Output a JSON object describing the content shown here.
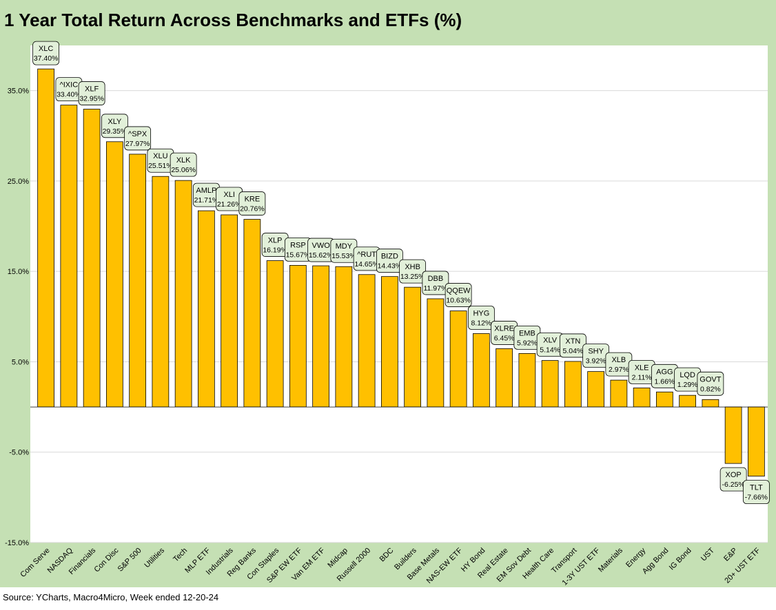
{
  "title": "1 Year Total Return Across Benchmarks and ETFs (%)",
  "source": "Source: YCharts, Macro4Micro, Week ended 12-20-24",
  "colors": {
    "bar": "#ffc000",
    "bar_edge": "#000000",
    "frame": "#c5e0b4",
    "label_fill": "#e2f0d9",
    "plot": "#ffffff"
  },
  "chart_data": {
    "type": "bar",
    "title": "1 Year Total Return Across Benchmarks and ETFs (%)",
    "xlabel": "",
    "ylabel": "",
    "ylim": [
      -15,
      40
    ],
    "yticks": [
      -15,
      -5,
      5,
      15,
      25,
      35
    ],
    "ytick_labels": [
      "-15.0%",
      "-5.0%",
      "5.0%",
      "15.0%",
      "25.0%",
      "35.0%"
    ],
    "grid": true,
    "legend": "none",
    "categories": [
      "Com Serve",
      "NASDAQ",
      "Financials",
      "Con Disc",
      "S&P 500",
      "Utilities",
      "Tech",
      "MLP ETF",
      "Industrials",
      "Reg Banks",
      "Con Staples",
      "S&P EW ETF",
      "Van EM ETF",
      "Midcap",
      "Russell 2000",
      "BDC",
      "Builders",
      "Base Metals",
      "NAS-EW ETF",
      "HY Bond",
      "Real Estate",
      "EM Sov Debt",
      "Health Care",
      "Transport",
      "1-3Y UST ETF",
      "Materials",
      "Energy",
      "Agg Bond",
      "IG Bond",
      "UST",
      "E&P",
      "20+ UST ETF"
    ],
    "values": [
      37.4,
      33.4,
      32.95,
      29.35,
      27.97,
      25.51,
      25.06,
      21.71,
      21.26,
      20.76,
      16.19,
      15.67,
      15.62,
      15.53,
      14.65,
      14.43,
      13.25,
      11.97,
      10.63,
      8.12,
      6.45,
      5.92,
      5.14,
      5.04,
      3.92,
      2.97,
      2.11,
      1.66,
      1.29,
      0.82,
      -6.25,
      -7.66
    ],
    "tickers": [
      "XLC",
      "^IXIC",
      "XLF",
      "XLY",
      "^SPX",
      "XLU",
      "XLK",
      "AMLP",
      "XLI",
      "KRE",
      "XLP",
      "RSP",
      "VWO",
      "MDY",
      "^RUT",
      "BIZD",
      "XHB",
      "DBB",
      "QQEW",
      "HYG",
      "XLRE",
      "EMB",
      "XLV",
      "XTN",
      "SHY",
      "XLB",
      "XLE",
      "AGG",
      "LQD",
      "GOVT",
      "XOP",
      "TLT"
    ],
    "value_labels": [
      "37.40%",
      "33.40%",
      "32.95%",
      "29.35%",
      "27.97%",
      "25.51%",
      "25.06%",
      "21.71%",
      "21.26%",
      "20.76%",
      "16.19%",
      "15.67%",
      "15.62%",
      "15.53%",
      "14.65%",
      "14.43%",
      "13.25%",
      "11.97%",
      "10.63%",
      "8.12%",
      "6.45%",
      "5.92%",
      "5.14%",
      "5.04%",
      "3.92%",
      "2.97%",
      "2.11%",
      "1.66%",
      "1.29%",
      "0.82%",
      "-6.25%",
      "-7.66%"
    ]
  }
}
